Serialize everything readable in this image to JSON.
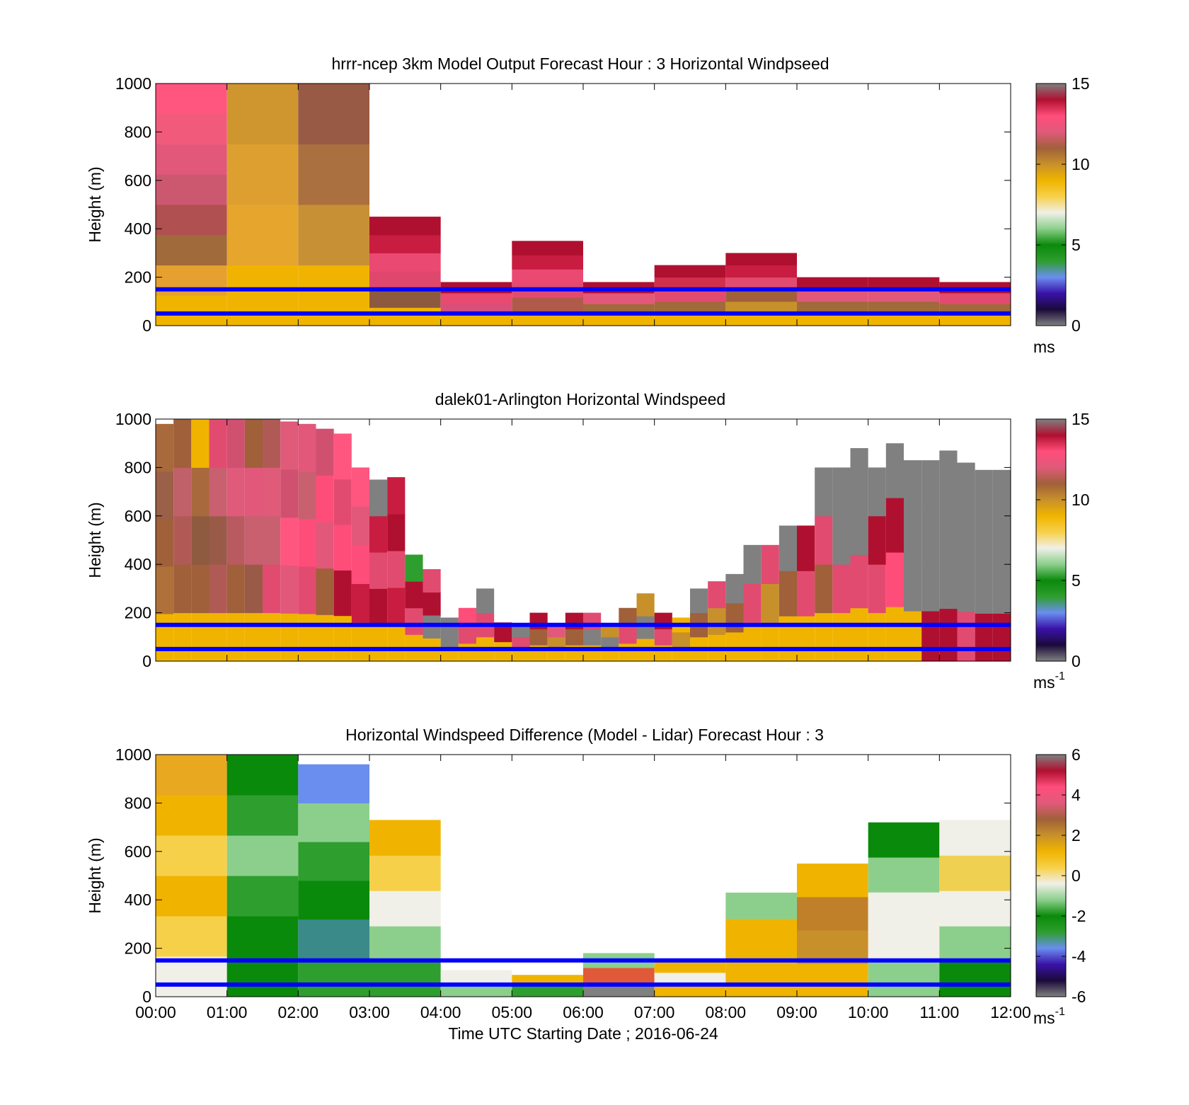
{
  "figure": {
    "xlabel": "Time UTC  Starting Date ; 2016-06-24",
    "x_ticks": [
      "00:00",
      "01:00",
      "02:00",
      "03:00",
      "04:00",
      "05:00",
      "06:00",
      "07:00",
      "08:00",
      "09:00",
      "10:00",
      "11:00",
      "12:00"
    ]
  },
  "colors": {
    "axis_line": "#000000",
    "reference_lines": "#0000ff",
    "missing": "#808080",
    "colormap_stops": [
      "#808080",
      "#1a0a3a",
      "#3a12a8",
      "#6a8ef0",
      "#2e9e2e",
      "#0a8a0a",
      "#8ccf8c",
      "#f0f0e8",
      "#f7d04a",
      "#f0b400",
      "#c8902a",
      "#a0603a",
      "#e05a7a",
      "#ff4d7a",
      "#b01030",
      "#808080"
    ]
  },
  "chart_data": [
    {
      "type": "heatmap",
      "title": "hrrr-ncep 3km Model Output   Forecast Hour : 3 Horizontal Windpseed",
      "ylabel": "Height (m)",
      "xlim": [
        "00:00",
        "12:00"
      ],
      "ylim": [
        0,
        1000
      ],
      "y_ticks": [
        0,
        200,
        400,
        600,
        800,
        1000
      ],
      "colorbar": {
        "range": [
          0,
          15
        ],
        "ticks": [
          0,
          5,
          10,
          15
        ],
        "label": "ms",
        "label_sup": ""
      },
      "reference_heights": [
        150,
        50
      ],
      "columns": [
        {
          "start": "00:00",
          "end": "01:00",
          "top": 1000,
          "colors": [
            "#f0b400",
            "#e5a030",
            "#a06a3a",
            "#b05050",
            "#cc5870",
            "#e2587a",
            "#f25a7c",
            "#ff5680"
          ]
        },
        {
          "start": "01:00",
          "end": "02:00",
          "top": 1000,
          "colors": [
            "#f0b400",
            "#e6a52c",
            "#dda030",
            "#cf962f"
          ]
        },
        {
          "start": "02:00",
          "end": "03:00",
          "top": 1000,
          "colors": [
            "#f0b400",
            "#c89035",
            "#aa7040",
            "#985a45"
          ]
        },
        {
          "start": "03:00",
          "end": "04:00",
          "top": 450,
          "colors": [
            "#f0b400",
            "#8e5a3f",
            "#e0476d",
            "#ea4a72",
            "#c81c40",
            "#b01030"
          ]
        },
        {
          "start": "04:00",
          "end": "05:00",
          "top": 180,
          "colors": [
            "#f0b400",
            "#d8507a",
            "#e84a70",
            "#b01030"
          ]
        },
        {
          "start": "05:00",
          "end": "06:00",
          "top": 350,
          "colors": [
            "#f0b400",
            "#b05a4a",
            "#e24b70",
            "#ea4a72",
            "#c81c40",
            "#b01030"
          ]
        },
        {
          "start": "06:00",
          "end": "07:00",
          "top": 180,
          "colors": [
            "#f0b400",
            "#a06a3a",
            "#e2587a",
            "#b01030"
          ]
        },
        {
          "start": "07:00",
          "end": "08:00",
          "top": 250,
          "colors": [
            "#f0b400",
            "#a06a3a",
            "#e24b70",
            "#d0304a",
            "#b01030"
          ]
        },
        {
          "start": "08:00",
          "end": "09:00",
          "top": 300,
          "colors": [
            "#f0b400",
            "#c8902a",
            "#a0603a",
            "#e24b70",
            "#c81c40",
            "#b01030"
          ]
        },
        {
          "start": "09:00",
          "end": "10:00",
          "top": 200,
          "colors": [
            "#f0b400",
            "#a06a3a",
            "#e2587a",
            "#b01030"
          ]
        },
        {
          "start": "10:00",
          "end": "11:00",
          "top": 200,
          "colors": [
            "#f0b400",
            "#a06a3a",
            "#e2587a",
            "#b01030"
          ]
        },
        {
          "start": "11:00",
          "end": "12:00",
          "top": 180,
          "colors": [
            "#f0b400",
            "#a06a3a",
            "#e24b70",
            "#b01030"
          ]
        }
      ]
    },
    {
      "type": "heatmap",
      "title": "dalek01-Arlington  Horizontal Windspeed",
      "ylabel": "Height (m)",
      "xlim": [
        "00:00",
        "12:00"
      ],
      "ylim": [
        0,
        1000
      ],
      "y_ticks": [
        0,
        200,
        400,
        600,
        800,
        1000
      ],
      "colorbar": {
        "range": [
          0,
          15
        ],
        "ticks": [
          0,
          5,
          10,
          15
        ],
        "label": "ms",
        "label_sup": "-1"
      },
      "reference_heights": [
        150,
        50
      ],
      "columns": [
        {
          "start": "00:00",
          "end": "00:15",
          "top": 980,
          "colors": [
            "#f0b400",
            "#b0703a",
            "#a0603a",
            "#9a6048",
            "#a86a3c"
          ]
        },
        {
          "start": "00:15",
          "end": "00:30",
          "top": 1000,
          "colors": [
            "#f0b400",
            "#a0603a",
            "#b05a55",
            "#c06068",
            "#a0603a"
          ]
        },
        {
          "start": "00:30",
          "end": "00:45",
          "top": 1000,
          "colors": [
            "#f0b400",
            "#a0603a",
            "#8e5a40",
            "#a86a3c",
            "#f0b400"
          ]
        },
        {
          "start": "00:45",
          "end": "01:00",
          "top": 1000,
          "colors": [
            "#f0b400",
            "#b05a55",
            "#9a5a48",
            "#c86070",
            "#e24b70"
          ]
        },
        {
          "start": "01:00",
          "end": "01:15",
          "top": 1000,
          "colors": [
            "#f0b400",
            "#a0603a",
            "#b85a60",
            "#e05a7a",
            "#d05070"
          ]
        },
        {
          "start": "01:15",
          "end": "01:30",
          "top": 1000,
          "colors": [
            "#f0b400",
            "#9a5a48",
            "#c86070",
            "#e2587a",
            "#a0603a"
          ]
        },
        {
          "start": "01:30",
          "end": "01:45",
          "top": 1000,
          "colors": [
            "#f0b400",
            "#e24b70",
            "#c86070",
            "#e05a7a",
            "#b05a55"
          ]
        },
        {
          "start": "01:45",
          "end": "02:00",
          "top": 990,
          "colors": [
            "#f0b400",
            "#e2587a",
            "#ff5680",
            "#d05070",
            "#e05a7a"
          ]
        },
        {
          "start": "02:00",
          "end": "02:15",
          "top": 980,
          "colors": [
            "#f0b400",
            "#e24b70",
            "#ff4d7a",
            "#c86070",
            "#e2587a"
          ]
        },
        {
          "start": "02:15",
          "end": "02:30",
          "top": 960,
          "colors": [
            "#f0b400",
            "#a0603a",
            "#e2587a",
            "#ff4d7a",
            "#d05070"
          ]
        },
        {
          "start": "02:30",
          "end": "02:45",
          "top": 940,
          "colors": [
            "#f0b400",
            "#b01030",
            "#ff4d7a",
            "#e24b70",
            "#ff5680"
          ]
        },
        {
          "start": "02:45",
          "end": "03:00",
          "top": 800,
          "colors": [
            "#f0b400",
            "#c81c40",
            "#ff4d7a",
            "#e2587a",
            "#ff5680"
          ]
        },
        {
          "start": "03:00",
          "end": "03:15",
          "top": 750,
          "colors": [
            "#f0b400",
            "#b01030",
            "#e24b70",
            "#c81c40",
            "#808080"
          ]
        },
        {
          "start": "03:15",
          "end": "03:30",
          "top": 760,
          "colors": [
            "#f0b400",
            "#c81c40",
            "#e24b70",
            "#b01030",
            "#c81c40"
          ]
        },
        {
          "start": "03:30",
          "end": "03:45",
          "top": 440,
          "colors": [
            "#f0b400",
            "#e24b70",
            "#b01030",
            "#2e9e2e"
          ]
        },
        {
          "start": "03:45",
          "end": "04:00",
          "top": 380,
          "colors": [
            "#f0b400",
            "#808080",
            "#b01030",
            "#e24b70"
          ]
        },
        {
          "start": "04:00",
          "end": "04:15",
          "top": 180,
          "colors": [
            "#f0b400",
            "#808080",
            "#808080"
          ]
        },
        {
          "start": "04:15",
          "end": "04:30",
          "top": 220,
          "colors": [
            "#f0b400",
            "#e24b70",
            "#ff4d7a"
          ]
        },
        {
          "start": "04:30",
          "end": "04:45",
          "top": 300,
          "colors": [
            "#f0b400",
            "#e24b70",
            "#808080"
          ]
        },
        {
          "start": "04:45",
          "end": "05:00",
          "top": 160,
          "colors": [
            "#f0b400",
            "#b01030"
          ]
        },
        {
          "start": "05:00",
          "end": "05:15",
          "top": 150,
          "colors": [
            "#f0b400",
            "#e24b70",
            "#808080"
          ]
        },
        {
          "start": "05:15",
          "end": "05:30",
          "top": 200,
          "colors": [
            "#f0b400",
            "#a0603a",
            "#b01030"
          ]
        },
        {
          "start": "05:30",
          "end": "05:45",
          "top": 150,
          "colors": [
            "#f0b400",
            "#c8902a",
            "#e2587a"
          ]
        },
        {
          "start": "05:45",
          "end": "06:00",
          "top": 200,
          "colors": [
            "#f0b400",
            "#a0603a",
            "#b01030"
          ]
        },
        {
          "start": "06:00",
          "end": "06:15",
          "top": 200,
          "colors": [
            "#f0b400",
            "#808080",
            "#e24b70"
          ]
        },
        {
          "start": "06:15",
          "end": "06:30",
          "top": 150,
          "colors": [
            "#f0b400",
            "#808080",
            "#c8902a"
          ]
        },
        {
          "start": "06:30",
          "end": "06:45",
          "top": 220,
          "colors": [
            "#f0b400",
            "#e24b70",
            "#a0603a"
          ]
        },
        {
          "start": "06:45",
          "end": "07:00",
          "top": 280,
          "colors": [
            "#f0b400",
            "#808080",
            "#c8902a"
          ]
        },
        {
          "start": "07:00",
          "end": "07:15",
          "top": 200,
          "colors": [
            "#f0b400",
            "#e24b70",
            "#b01030"
          ]
        },
        {
          "start": "07:15",
          "end": "07:30",
          "top": 180,
          "colors": [
            "#f0b400",
            "#c8902a",
            "#f0b400"
          ]
        },
        {
          "start": "07:30",
          "end": "07:45",
          "top": 300,
          "colors": [
            "#f0b400",
            "#a0603a",
            "#808080"
          ]
        },
        {
          "start": "07:45",
          "end": "08:00",
          "top": 330,
          "colors": [
            "#f0b400",
            "#c8902a",
            "#e24b70"
          ]
        },
        {
          "start": "08:00",
          "end": "08:15",
          "top": 360,
          "colors": [
            "#f0b400",
            "#a0603a",
            "#808080"
          ]
        },
        {
          "start": "08:15",
          "end": "08:30",
          "top": 480,
          "colors": [
            "#f0b400",
            "#e24b70",
            "#808080"
          ]
        },
        {
          "start": "08:30",
          "end": "08:45",
          "top": 480,
          "colors": [
            "#f0b400",
            "#c8902a",
            "#e24b70"
          ]
        },
        {
          "start": "08:45",
          "end": "09:00",
          "top": 560,
          "colors": [
            "#f0b400",
            "#a0603a",
            "#808080"
          ]
        },
        {
          "start": "09:00",
          "end": "09:15",
          "top": 560,
          "colors": [
            "#f0b400",
            "#e24b70",
            "#b01030"
          ]
        },
        {
          "start": "09:15",
          "end": "09:30",
          "top": 800,
          "colors": [
            "#f0b400",
            "#a0603a",
            "#e24b70",
            "#808080"
          ]
        },
        {
          "start": "09:30",
          "end": "09:45",
          "top": 800,
          "colors": [
            "#f0b400",
            "#e24b70",
            "#808080",
            "#808080"
          ]
        },
        {
          "start": "09:45",
          "end": "10:00",
          "top": 880,
          "colors": [
            "#f0b400",
            "#e24b70",
            "#808080",
            "#808080"
          ]
        },
        {
          "start": "10:00",
          "end": "10:15",
          "top": 800,
          "colors": [
            "#f0b400",
            "#e24b70",
            "#b01030",
            "#808080"
          ]
        },
        {
          "start": "10:15",
          "end": "10:30",
          "top": 900,
          "colors": [
            "#f0b400",
            "#ff4d7a",
            "#b01030",
            "#808080"
          ]
        },
        {
          "start": "10:30",
          "end": "10:45",
          "top": 830,
          "colors": [
            "#f0b400",
            "#808080",
            "#808080",
            "#808080"
          ]
        },
        {
          "start": "10:45",
          "end": "11:00",
          "top": 830,
          "colors": [
            "#b01030",
            "#808080",
            "#808080",
            "#808080"
          ]
        },
        {
          "start": "11:00",
          "end": "11:15",
          "top": 870,
          "colors": [
            "#b01030",
            "#808080",
            "#808080",
            "#808080"
          ]
        },
        {
          "start": "11:15",
          "end": "11:30",
          "top": 820,
          "colors": [
            "#e24b70",
            "#808080",
            "#808080",
            "#808080"
          ]
        },
        {
          "start": "11:30",
          "end": "11:45",
          "top": 790,
          "colors": [
            "#b01030",
            "#808080",
            "#808080",
            "#808080"
          ]
        },
        {
          "start": "11:45",
          "end": "12:00",
          "top": 790,
          "colors": [
            "#b01030",
            "#808080",
            "#808080",
            "#808080"
          ]
        }
      ]
    },
    {
      "type": "heatmap",
      "title": "Horizontal Windspeed Difference (Model - Lidar) Forecast Hour : 3",
      "ylabel": "Height (m)",
      "xlim": [
        "00:00",
        "12:00"
      ],
      "ylim": [
        0,
        1000
      ],
      "y_ticks": [
        0,
        200,
        400,
        600,
        800,
        1000
      ],
      "colorbar": {
        "range": [
          -6,
          6
        ],
        "ticks": [
          -6,
          -4,
          -2,
          0,
          2,
          4,
          6
        ],
        "label": "ms",
        "label_sup": "-1"
      },
      "reference_heights": [
        150,
        50
      ],
      "columns": [
        {
          "start": "00:00",
          "end": "01:00",
          "top": 1000,
          "colors": [
            "#f0f0e8",
            "#f7d04a",
            "#f0b400",
            "#f7d04a",
            "#f0b400",
            "#e8a820"
          ]
        },
        {
          "start": "01:00",
          "end": "02:00",
          "top": 1000,
          "colors": [
            "#0a8a0a",
            "#0a8a0a",
            "#2e9e2e",
            "#8ccf8c",
            "#2e9e2e",
            "#0a8a0a"
          ]
        },
        {
          "start": "02:00",
          "end": "03:00",
          "top": 960,
          "colors": [
            "#2e9e2e",
            "#3a8a8a",
            "#0a8a0a",
            "#2e9e2e",
            "#8ccf8c",
            "#6a8ef0"
          ]
        },
        {
          "start": "03:00",
          "end": "04:00",
          "top": 730,
          "colors": [
            "#2e9e2e",
            "#8ccf8c",
            "#f0f0e8",
            "#f7d04a",
            "#f0b400"
          ]
        },
        {
          "start": "04:00",
          "end": "05:00",
          "top": 110,
          "colors": [
            "#8ccf8c",
            "#f0f0e8"
          ]
        },
        {
          "start": "05:00",
          "end": "06:00",
          "top": 90,
          "colors": [
            "#2e9e2e",
            "#f0b400"
          ]
        },
        {
          "start": "06:00",
          "end": "07:00",
          "top": 180,
          "colors": [
            "#808080",
            "#e05a3a",
            "#8ccf8c"
          ]
        },
        {
          "start": "07:00",
          "end": "08:00",
          "top": 150,
          "colors": [
            "#f0b400",
            "#f0f0e8",
            "#f0b400"
          ]
        },
        {
          "start": "08:00",
          "end": "09:00",
          "top": 430,
          "colors": [
            "#f0b400",
            "#f0b400",
            "#f0b400",
            "#8ccf8c"
          ]
        },
        {
          "start": "09:00",
          "end": "10:00",
          "top": 550,
          "colors": [
            "#f0b400",
            "#c8902a",
            "#c0802a",
            "#f0b400"
          ]
        },
        {
          "start": "10:00",
          "end": "11:00",
          "top": 720,
          "colors": [
            "#8ccf8c",
            "#f0f0e8",
            "#f0f0e8",
            "#8ccf8c",
            "#0a8a0a"
          ]
        },
        {
          "start": "11:00",
          "end": "12:00",
          "top": 730,
          "colors": [
            "#0a8a0a",
            "#8ccf8c",
            "#f0f0e8",
            "#f0d050",
            "#f0f0e8"
          ]
        }
      ]
    }
  ]
}
